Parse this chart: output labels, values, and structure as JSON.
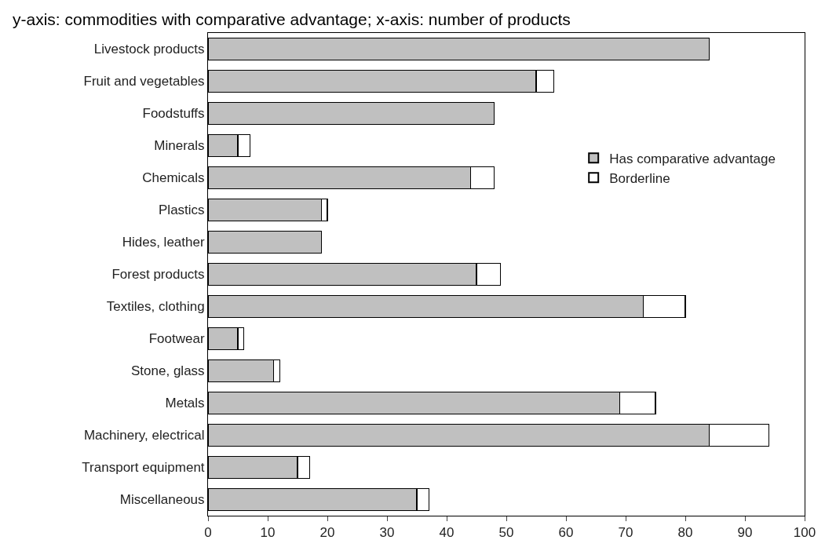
{
  "chart_data": {
    "type": "bar",
    "orientation": "horizontal",
    "stacked": true,
    "title": "y-axis: commodities with comparative advantage; x-axis: number of products",
    "categories": [
      "Livestock products",
      "Fruit and vegetables",
      "Foodstuffs",
      "Minerals",
      "Chemicals",
      "Plastics",
      "Hides, leather",
      "Forest products",
      "Textiles, clothing",
      "Footwear",
      "Stone, glass",
      "Metals",
      "Machinery, electrical",
      "Transport equipment",
      "Miscellaneous"
    ],
    "series": [
      {
        "name": "Has comparative advantage",
        "color": "#c0c0c0",
        "values": [
          84,
          55,
          48,
          5,
          44,
          19,
          19,
          45,
          73,
          5,
          11,
          69,
          84,
          15,
          35
        ]
      },
      {
        "name": "Borderline",
        "color": "#ffffff",
        "values": [
          null,
          3,
          null,
          2,
          4,
          1,
          null,
          4,
          7,
          1,
          1,
          6,
          10,
          2,
          2
        ]
      }
    ],
    "xlim": [
      0,
      100
    ],
    "xticks": [
      0,
      10,
      20,
      30,
      40,
      50,
      60,
      70,
      80,
      90,
      100
    ],
    "grid": false,
    "legend": "right"
  }
}
